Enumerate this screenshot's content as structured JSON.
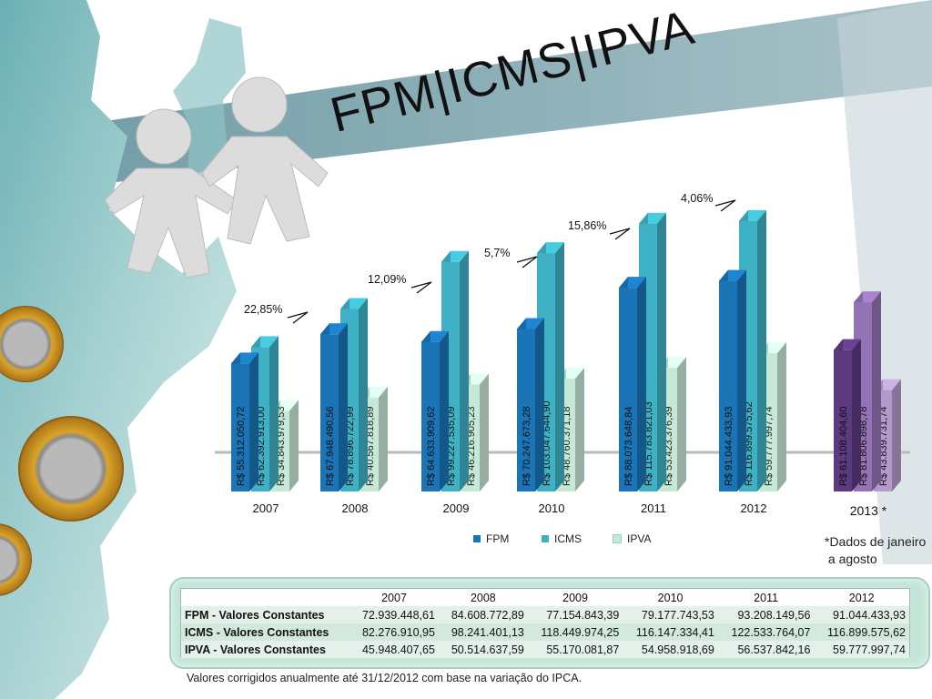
{
  "title": "FPM|ICMS|IPVA",
  "colors": {
    "fpm": "#1a74b6",
    "icms": "#3fb1c4",
    "ipva": "#c6e8d6",
    "fpm2013": "#5b3a80",
    "icms2013": "#9473b4",
    "ipva2013": "#b49acb"
  },
  "footnote_lines": [
    "*Dados de janeiro",
    " a agosto"
  ],
  "legend": [
    "FPM",
    "ICMS",
    "IPVA"
  ],
  "chart_data": {
    "type": "bar",
    "categories": [
      "2007",
      "2008",
      "2009",
      "2010",
      "2011",
      "2012",
      "2013 *"
    ],
    "series": [
      {
        "name": "FPM",
        "values": [
          55312050.72,
          67948490.56,
          64633909.62,
          70247673.28,
          88073648.84,
          91044433.93,
          61108404.6
        ],
        "labels": [
          "R$ 55.312.050,72",
          "R$ 67.948.490,56",
          "R$ 64.633.909,62",
          "R$ 70.247.673,28",
          "R$ 88.073.648,84",
          "R$ 91.044.433,93",
          "R$ 61.108.404,60"
        ]
      },
      {
        "name": "ICMS",
        "values": [
          62392913.0,
          78896722.99,
          99227535.09,
          103047644.9,
          115783821.03,
          116899575.62,
          81806898.78
        ],
        "labels": [
          "R$ 62.392.913,00",
          "R$ 78.896.722,99",
          "R$ 99.227.535,09",
          "R$ 103.047.644,90",
          "R$ 115.783.821,03",
          "R$ 116.899.575,62",
          "R$ 81.806.898,78"
        ]
      },
      {
        "name": "IPVA",
        "values": [
          34843979.53,
          40567818.89,
          46216905.23,
          48760371.18,
          53423376.39,
          59777997.74,
          43839731.74
        ],
        "labels": [
          "R$ 34.843.979,53",
          "R$ 40.567.818,89",
          "R$ 46.216.905,23",
          "R$ 48.760.371,18",
          "R$ 53.423.376,39",
          "R$ 59.777.997,74",
          "R$ 43.839.731,74"
        ]
      }
    ],
    "annotations": [
      "22,85%",
      "12,09%",
      "5,7%",
      "15,86%",
      "4,06%"
    ],
    "ylim": [
      0,
      130000000
    ]
  },
  "table": {
    "headers": [
      "",
      "2007",
      "2008",
      "2009",
      "2010",
      "2011",
      "2012"
    ],
    "rows": [
      [
        "FPM - Valores Constantes",
        "72.939.448,61",
        "84.608.772,89",
        "77.154.843,39",
        "79.177.743,53",
        "93.208.149,56",
        "91.044.433,93"
      ],
      [
        "ICMS - Valores Constantes",
        "82.276.910,95",
        "98.241.401,13",
        "118.449.974,25",
        "116.147.334,41",
        "122.533.764,07",
        "116.899.575,62"
      ],
      [
        "IPVA - Valores Constantes",
        "45.948.407,65",
        "50.514.637,59",
        "55.170.081,87",
        "54.958.918,69",
        "56.537.842,16",
        "59.777.997,74"
      ]
    ]
  },
  "note": "Valores corrigidos anualmente até 31/12/2012 com base na variação do IPCA."
}
